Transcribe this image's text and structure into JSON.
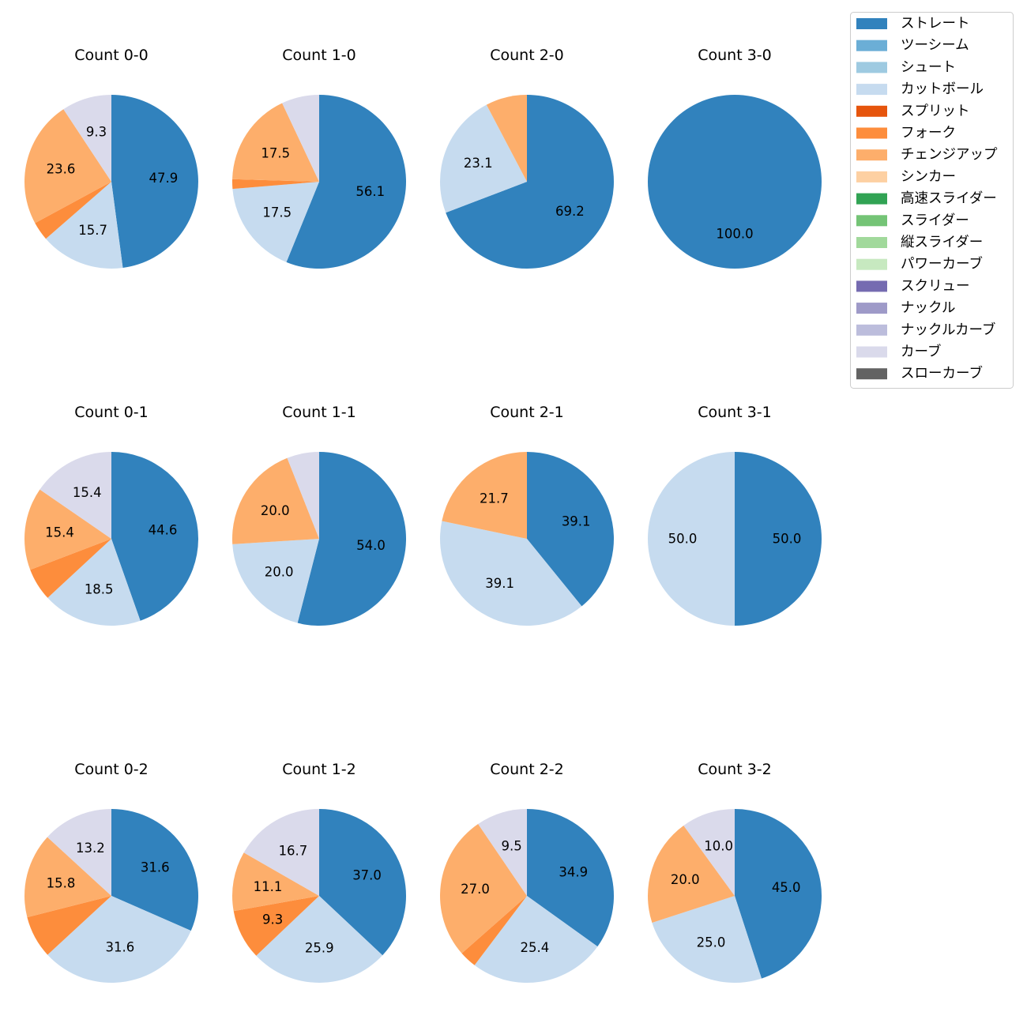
{
  "legend": [
    {
      "label": "ストレート",
      "color": "#3182bd"
    },
    {
      "label": "ツーシーム",
      "color": "#6baed6"
    },
    {
      "label": "シュート",
      "color": "#9ecae1"
    },
    {
      "label": "カットボール",
      "color": "#c6dbef"
    },
    {
      "label": "スプリット",
      "color": "#e6550d"
    },
    {
      "label": "フォーク",
      "color": "#fd8d3c"
    },
    {
      "label": "チェンジアップ",
      "color": "#fdae6b"
    },
    {
      "label": "シンカー",
      "color": "#fdd0a2"
    },
    {
      "label": "高速スライダー",
      "color": "#31a354"
    },
    {
      "label": "スライダー",
      "color": "#74c476"
    },
    {
      "label": "縦スライダー",
      "color": "#a1d99b"
    },
    {
      "label": "パワーカーブ",
      "color": "#c7e9c0"
    },
    {
      "label": "スクリュー",
      "color": "#756bb1"
    },
    {
      "label": "ナックル",
      "color": "#9e9ac8"
    },
    {
      "label": "ナックルカーブ",
      "color": "#bcbddc"
    },
    {
      "label": "カーブ",
      "color": "#dadaeb"
    },
    {
      "label": "スローカーブ",
      "color": "#636363"
    }
  ],
  "chart_data": [
    {
      "type": "pie",
      "title": "Count 0-0",
      "slices": [
        {
          "pitch": "ストレート",
          "value": 47.9,
          "label": "47.9"
        },
        {
          "pitch": "カットボール",
          "value": 15.7,
          "label": "15.7"
        },
        {
          "pitch": "フォーク",
          "value": 3.5,
          "label": ""
        },
        {
          "pitch": "チェンジアップ",
          "value": 23.6,
          "label": "23.6"
        },
        {
          "pitch": "カーブ",
          "value": 9.3,
          "label": "9.3"
        }
      ]
    },
    {
      "type": "pie",
      "title": "Count 1-0",
      "slices": [
        {
          "pitch": "ストレート",
          "value": 56.1,
          "label": "56.1"
        },
        {
          "pitch": "カットボール",
          "value": 17.5,
          "label": "17.5"
        },
        {
          "pitch": "フォーク",
          "value": 1.8,
          "label": ""
        },
        {
          "pitch": "チェンジアップ",
          "value": 17.5,
          "label": "17.5"
        },
        {
          "pitch": "カーブ",
          "value": 7.0,
          "label": ""
        }
      ]
    },
    {
      "type": "pie",
      "title": "Count 2-0",
      "slices": [
        {
          "pitch": "ストレート",
          "value": 69.2,
          "label": "69.2"
        },
        {
          "pitch": "カットボール",
          "value": 23.1,
          "label": "23.1"
        },
        {
          "pitch": "チェンジアップ",
          "value": 7.7,
          "label": ""
        }
      ]
    },
    {
      "type": "pie",
      "title": "Count 3-0",
      "slices": [
        {
          "pitch": "ストレート",
          "value": 100.0,
          "label": "100.0"
        }
      ]
    },
    {
      "type": "pie",
      "title": "Count 0-1",
      "slices": [
        {
          "pitch": "ストレート",
          "value": 44.6,
          "label": "44.6"
        },
        {
          "pitch": "カットボール",
          "value": 18.5,
          "label": "18.5"
        },
        {
          "pitch": "フォーク",
          "value": 6.1,
          "label": ""
        },
        {
          "pitch": "チェンジアップ",
          "value": 15.4,
          "label": "15.4"
        },
        {
          "pitch": "カーブ",
          "value": 15.4,
          "label": "15.4"
        }
      ]
    },
    {
      "type": "pie",
      "title": "Count 1-1",
      "slices": [
        {
          "pitch": "ストレート",
          "value": 54.0,
          "label": "54.0"
        },
        {
          "pitch": "カットボール",
          "value": 20.0,
          "label": "20.0"
        },
        {
          "pitch": "チェンジアップ",
          "value": 20.0,
          "label": "20.0"
        },
        {
          "pitch": "カーブ",
          "value": 6.0,
          "label": ""
        }
      ]
    },
    {
      "type": "pie",
      "title": "Count 2-1",
      "slices": [
        {
          "pitch": "ストレート",
          "value": 39.1,
          "label": "39.1"
        },
        {
          "pitch": "カットボール",
          "value": 39.1,
          "label": "39.1"
        },
        {
          "pitch": "チェンジアップ",
          "value": 21.7,
          "label": "21.7"
        }
      ]
    },
    {
      "type": "pie",
      "title": "Count 3-1",
      "slices": [
        {
          "pitch": "ストレート",
          "value": 50.0,
          "label": "50.0"
        },
        {
          "pitch": "カットボール",
          "value": 50.0,
          "label": "50.0"
        }
      ]
    },
    {
      "type": "pie",
      "title": "Count 0-2",
      "slices": [
        {
          "pitch": "ストレート",
          "value": 31.6,
          "label": "31.6"
        },
        {
          "pitch": "カットボール",
          "value": 31.6,
          "label": "31.6"
        },
        {
          "pitch": "フォーク",
          "value": 7.9,
          "label": ""
        },
        {
          "pitch": "チェンジアップ",
          "value": 15.8,
          "label": "15.8"
        },
        {
          "pitch": "カーブ",
          "value": 13.2,
          "label": "13.2"
        }
      ]
    },
    {
      "type": "pie",
      "title": "Count 1-2",
      "slices": [
        {
          "pitch": "ストレート",
          "value": 37.0,
          "label": "37.0"
        },
        {
          "pitch": "カットボール",
          "value": 25.9,
          "label": "25.9"
        },
        {
          "pitch": "フォーク",
          "value": 9.3,
          "label": "9.3"
        },
        {
          "pitch": "チェンジアップ",
          "value": 11.1,
          "label": "11.1"
        },
        {
          "pitch": "カーブ",
          "value": 16.7,
          "label": "16.7"
        }
      ]
    },
    {
      "type": "pie",
      "title": "Count 2-2",
      "slices": [
        {
          "pitch": "ストレート",
          "value": 34.9,
          "label": "34.9"
        },
        {
          "pitch": "カットボール",
          "value": 25.4,
          "label": "25.4"
        },
        {
          "pitch": "フォーク",
          "value": 3.2,
          "label": ""
        },
        {
          "pitch": "チェンジアップ",
          "value": 27.0,
          "label": "27.0"
        },
        {
          "pitch": "カーブ",
          "value": 9.5,
          "label": "9.5"
        }
      ]
    },
    {
      "type": "pie",
      "title": "Count 3-2",
      "slices": [
        {
          "pitch": "ストレート",
          "value": 45.0,
          "label": "45.0"
        },
        {
          "pitch": "カットボール",
          "value": 25.0,
          "label": "25.0"
        },
        {
          "pitch": "チェンジアップ",
          "value": 20.0,
          "label": "20.0"
        },
        {
          "pitch": "カーブ",
          "value": 10.0,
          "label": "10.0"
        }
      ]
    }
  ]
}
